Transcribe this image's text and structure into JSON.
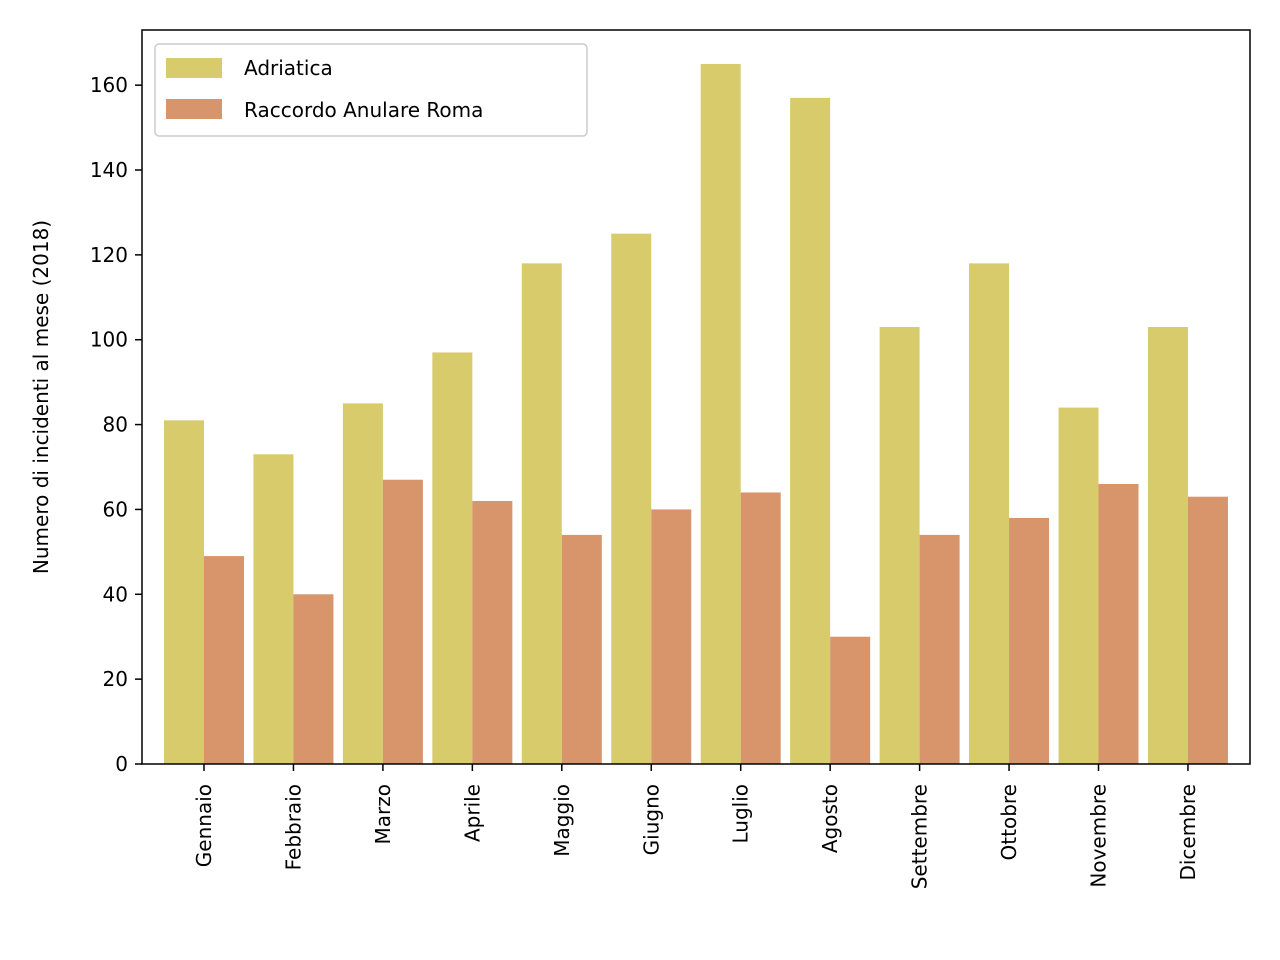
{
  "chart_data": {
    "type": "bar",
    "categories": [
      "Gennaio",
      "Febbraio",
      "Marzo",
      "Aprile",
      "Maggio",
      "Giugno",
      "Luglio",
      "Agosto",
      "Settembre",
      "Ottobre",
      "Novembre",
      "Dicembre"
    ],
    "series": [
      {
        "name": "Adriatica",
        "color": "#d8cb6b",
        "values": [
          81,
          73,
          85,
          97,
          118,
          125,
          165,
          157,
          103,
          118,
          84,
          103
        ]
      },
      {
        "name": "Raccordo Anulare Roma",
        "color": "#d8946b",
        "values": [
          49,
          40,
          67,
          62,
          54,
          60,
          64,
          30,
          54,
          58,
          66,
          63
        ]
      }
    ],
    "title": "",
    "xlabel": "",
    "ylabel": "Numero di incidenti al mese (2018)",
    "ylim": [
      0,
      173
    ],
    "yticks": [
      0,
      20,
      40,
      60,
      80,
      100,
      120,
      140,
      160
    ],
    "grid": false,
    "legend_position": "top-left"
  }
}
